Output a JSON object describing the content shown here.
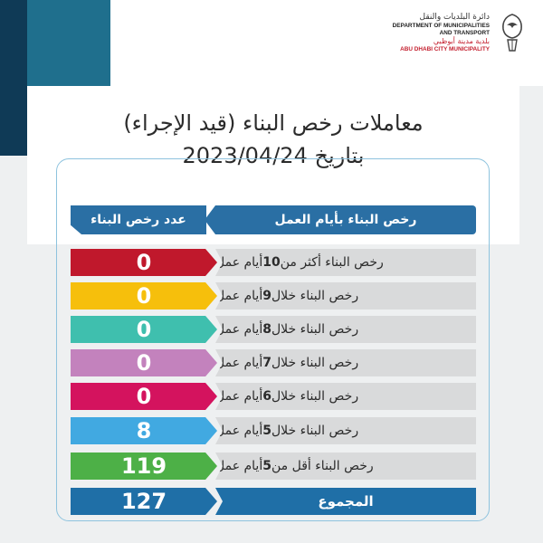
{
  "header": {
    "logo": {
      "arabic_department": "دائرة البلديات والنقل",
      "english_department": "DEPARTMENT OF MUNICIPALITIES AND TRANSPORT",
      "arabic_municipality": "بلدية مدينة أبوظبي",
      "english_municipality": "ABU DHABI CITY MUNICIPALITY",
      "icon": "falcon-seal-icon"
    }
  },
  "title": {
    "line1": "معاملات رخص البناء (قيد الإجراء)",
    "line2": "بتاريخ 2023/04/24"
  },
  "table": {
    "header_count": "عدد رخص البناء",
    "header_days": "رخص البناء بأيام العمل",
    "rows": [
      {
        "prefix": "رخص البناء أكثر من",
        "days": "10",
        "suffix": "أيام عمل",
        "value": "0",
        "color": "#c0182c"
      },
      {
        "prefix": "رخص البناء خلال",
        "days": "9",
        "suffix": "أيام عمل",
        "value": "0",
        "color": "#f6bf0c"
      },
      {
        "prefix": "رخص البناء خلال",
        "days": "8",
        "suffix": "أيام عمل",
        "value": "0",
        "color": "#3fbfae"
      },
      {
        "prefix": "رخص البناء خلال",
        "days": "7",
        "suffix": "أيام عمل",
        "value": "0",
        "color": "#c382bd"
      },
      {
        "prefix": "رخص البناء خلال",
        "days": "6",
        "suffix": "أيام عمل",
        "value": "0",
        "color": "#d4135e"
      },
      {
        "prefix": "رخص البناء خلال",
        "days": "5",
        "suffix": "أيام عمل",
        "value": "8",
        "color": "#41a9e1"
      },
      {
        "prefix": "رخص البناء أقل من",
        "days": "5",
        "suffix": "أيام عمل",
        "value": "119",
        "color": "#4db047"
      }
    ],
    "total_label": "المجموع",
    "total_value": "127",
    "total_color": "#1f6fa7"
  }
}
